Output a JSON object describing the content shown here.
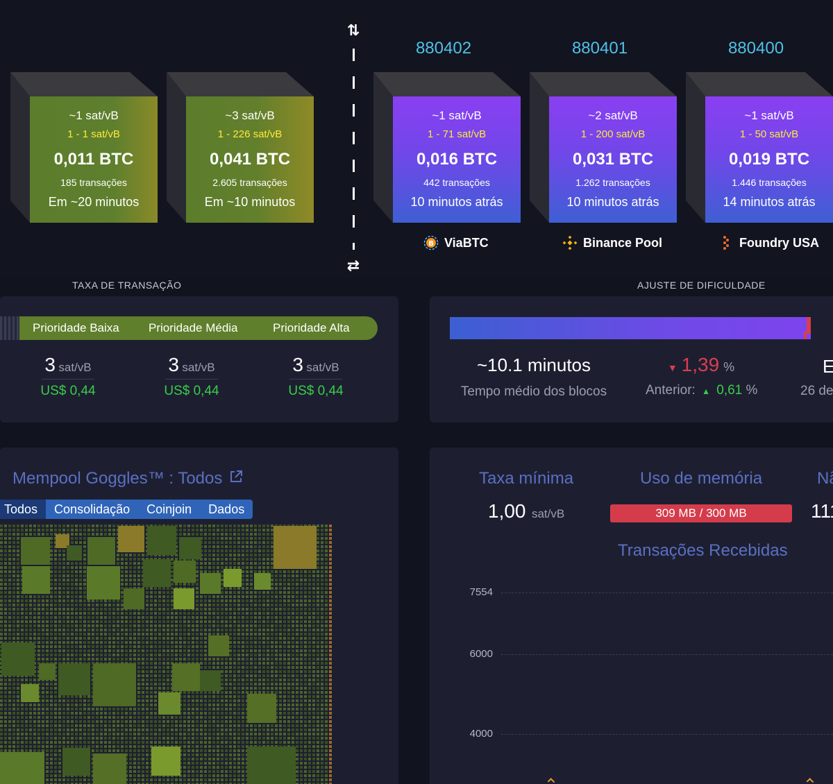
{
  "heights": [
    "880402",
    "880401",
    "880400"
  ],
  "pending_blocks": [
    {
      "fee": "~1 sat/vB",
      "range": "1 - 1 sat/vB",
      "amount": "0,011 BTC",
      "txs": "185 transações",
      "time": "Em ~20 minutos"
    },
    {
      "fee": "~3 sat/vB",
      "range": "1 - 226 sat/vB",
      "amount": "0,041 BTC",
      "txs": "2.605 transações",
      "time": "Em ~10 minutos"
    }
  ],
  "mined_blocks": [
    {
      "fee": "~1 sat/vB",
      "range": "1 - 71 sat/vB",
      "amount": "0,016 BTC",
      "txs": "442 transações",
      "time": "10 minutos atrás",
      "pool": "ViaBTC"
    },
    {
      "fee": "~2 sat/vB",
      "range": "1 - 200 sat/vB",
      "amount": "0,031 BTC",
      "txs": "1.262 transações",
      "time": "10 minutos atrás",
      "pool": "Binance Pool"
    },
    {
      "fee": "~1 sat/vB",
      "range": "1 - 50 sat/vB",
      "amount": "0,019 BTC",
      "txs": "1.446 transações",
      "time": "14 minutos atrás",
      "pool": "Foundry USA"
    }
  ],
  "fees": {
    "title": "TAXA DE TRANSAÇÃO",
    "labels": [
      "Prioridade Baixa",
      "Prioridade Média",
      "Prioridade Alta"
    ],
    "values": [
      {
        "value": "3",
        "unit": "sat/vB",
        "usd": "US$ 0,44"
      },
      {
        "value": "3",
        "unit": "sat/vB",
        "usd": "US$ 0,44"
      },
      {
        "value": "3",
        "unit": "sat/vB",
        "usd": "US$ 0,44"
      }
    ]
  },
  "difficulty": {
    "title": "AJUSTE DE DIFICULDADE",
    "avg_time": "~10.1 minutos",
    "avg_time_label": "Tempo médio dos blocos",
    "change": "1,39",
    "change_unit": "%",
    "previous_label": "Anterior:",
    "previous": "0,61",
    "previous_unit": "%",
    "partial_value": "E",
    "partial_label": "26 de",
    "colors": {
      "negative": "#d83e4f",
      "positive": "#3bcc49"
    }
  },
  "goggles": {
    "title": "Mempool Goggles™ : Todos",
    "tabs": [
      "Todos",
      "Consolidação",
      "Coinjoin",
      "Dados"
    ],
    "active_tab": "Todos"
  },
  "mempool": {
    "min_fee_label": "Taxa mínima",
    "min_fee_value": "1,00",
    "min_fee_unit": "sat/vB",
    "memory_label": "Uso de memória",
    "memory_value": "309 MB / 300 MB",
    "partial_label": "Nã",
    "partial_value": "111",
    "chart_title": "Transações Recebidas",
    "y_ticks": [
      "7554",
      "6000",
      "4000"
    ]
  }
}
